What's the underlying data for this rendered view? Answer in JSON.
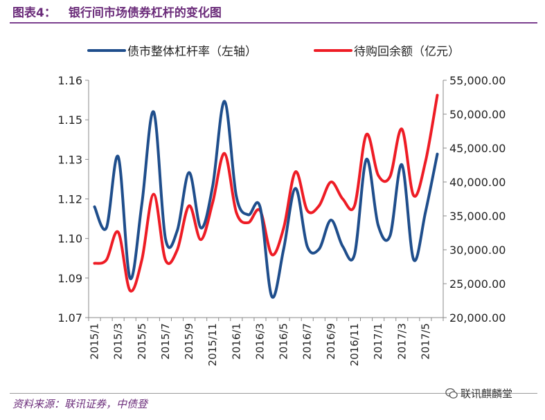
{
  "header": {
    "figure_label": "图表4：",
    "figure_title": "银行间市场债券杠杆的变化图"
  },
  "footer": {
    "source": "资料来源：联讯证券，中债登",
    "watermark": "联讯麒麟堂"
  },
  "colors": {
    "leverage": "#1f4e8c",
    "repo": "#ee1c25",
    "title": "#6b2c7a"
  },
  "chart_data": {
    "type": "line",
    "title": "",
    "xlabel": "",
    "categories": [
      "2015/1",
      "2015/2",
      "2015/3",
      "2015/4",
      "2015/5",
      "2015/6",
      "2015/7",
      "2015/8",
      "2015/9",
      "2015/10",
      "2015/11",
      "2015/12",
      "2016/1",
      "2016/2",
      "2016/3",
      "2016/4",
      "2016/5",
      "2016/6",
      "2016/7",
      "2016/8",
      "2016/9",
      "2016/10",
      "2016/11",
      "2016/12",
      "2017/1",
      "2017/2",
      "2017/3",
      "2017/4",
      "2017/5",
      "2017/6"
    ],
    "tick_labels": [
      "2015/1",
      "2015/3",
      "2015/5",
      "2015/7",
      "2015/9",
      "2015/11",
      "2016/1",
      "2016/3",
      "2016/5",
      "2016/7",
      "2016/9",
      "2016/11",
      "2017/1",
      "2017/3",
      "2017/5"
    ],
    "left_axis": {
      "ylim": [
        1.07,
        1.16
      ],
      "tick_values": [
        1.07,
        1.085,
        1.1,
        1.115,
        1.13,
        1.145,
        1.16
      ],
      "tick_labels": [
        "1.07",
        "1.09",
        "1.10",
        "1.12",
        "1.13",
        "1.15",
        "1.16"
      ]
    },
    "right_axis": {
      "ylim": [
        20000,
        55000
      ],
      "ticks": [
        "20,000.00",
        "25,000.00",
        "30,000.00",
        "35,000.00",
        "40,000.00",
        "45,000.00",
        "50,000.00",
        "55,000.00"
      ]
    },
    "series": [
      {
        "name": "债市整体杠杆率（左轴）",
        "axis": "left",
        "values": [
          1.112,
          1.104,
          1.131,
          1.085,
          1.113,
          1.148,
          1.1,
          1.103,
          1.125,
          1.104,
          1.12,
          1.152,
          1.116,
          1.109,
          1.112,
          1.078,
          1.096,
          1.119,
          1.097,
          1.096,
          1.107,
          1.097,
          1.094,
          1.13,
          1.105,
          1.101,
          1.128,
          1.092,
          1.11,
          1.132
        ]
      },
      {
        "name": "待购回余额（亿元）",
        "axis": "right",
        "values": [
          28000,
          28500,
          32600,
          24000,
          28500,
          38200,
          28500,
          30000,
          36500,
          31500,
          37000,
          44200,
          35500,
          34000,
          35800,
          29300,
          33200,
          41500,
          35800,
          36500,
          40000,
          37500,
          36500,
          47000,
          41000,
          40800,
          47800,
          38000,
          43000,
          52800
        ]
      }
    ]
  }
}
